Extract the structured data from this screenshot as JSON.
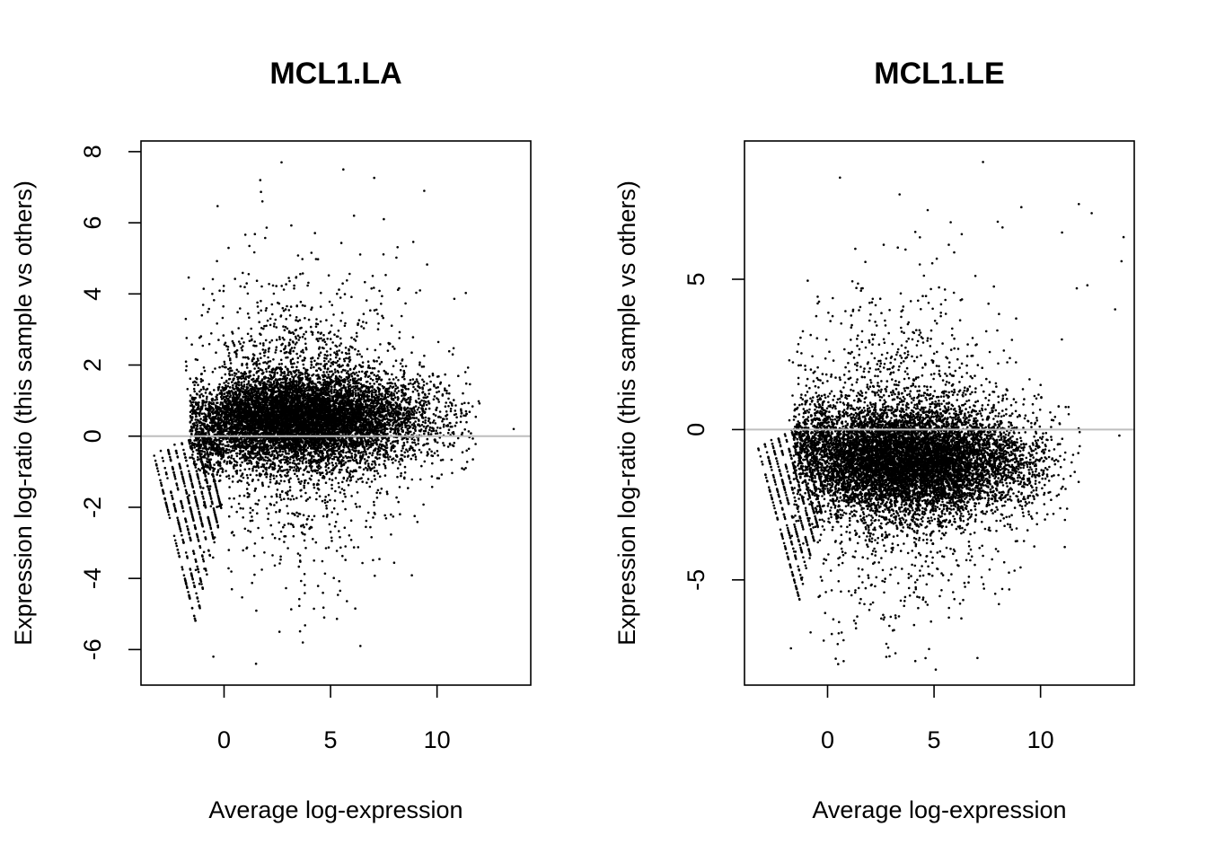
{
  "chart_data": [
    {
      "type": "scatter",
      "title": "MCL1.LA",
      "xlabel": "Average log-expression",
      "ylabel": "Expression log-ratio (this sample vs others)",
      "xlim": [
        -3.9,
        14.4
      ],
      "ylim": [
        -7.0,
        8.3
      ],
      "xticks": [
        0,
        5,
        10
      ],
      "yticks": [
        -6,
        -4,
        -2,
        0,
        2,
        4,
        6,
        8
      ],
      "reference_line": 0,
      "reference_line_color": "#bebebe",
      "point_color": "#000000",
      "cloud": {
        "center_x": 3.5,
        "center_y": 0.5,
        "spread_x": 3.0,
        "spread_y": 0.8,
        "count": 9000
      },
      "low_expression_stripes": {
        "x_start": -3.3,
        "x_end": -0.3,
        "slope": -2.4,
        "count": 8
      },
      "outliers": [
        {
          "x": 2.7,
          "y": 7.7
        },
        {
          "x": 5.6,
          "y": 7.5
        },
        {
          "x": 1.7,
          "y": 7.2
        },
        {
          "x": 9.4,
          "y": 6.9
        },
        {
          "x": 1.8,
          "y": 6.6
        },
        {
          "x": 7.5,
          "y": 6.1
        },
        {
          "x": 6.1,
          "y": 6.2
        },
        {
          "x": 9.2,
          "y": 4.1
        },
        {
          "x": 13.6,
          "y": 0.2
        },
        {
          "x": 1.5,
          "y": -6.4
        },
        {
          "x": 6.4,
          "y": -5.9
        },
        {
          "x": 3.7,
          "y": -5.8
        },
        {
          "x": 2.6,
          "y": -5.5
        },
        {
          "x": 4.7,
          "y": -5.1
        },
        {
          "x": -0.5,
          "y": -6.2
        }
      ]
    },
    {
      "type": "scatter",
      "title": "MCL1.LE",
      "xlabel": "Average log-expression",
      "ylabel": "Expression log-ratio (this sample vs others)",
      "xlim": [
        -3.9,
        14.4
      ],
      "ylim": [
        -8.5,
        9.6
      ],
      "xticks": [
        0,
        5,
        10
      ],
      "yticks": [
        -5,
        0,
        5
      ],
      "reference_line": 0,
      "reference_line_color": "#bebebe",
      "point_color": "#000000",
      "cloud": {
        "center_x": 3.5,
        "center_y": -1.0,
        "spread_x": 3.0,
        "spread_y": 1.1,
        "count": 9000
      },
      "low_expression_stripes": {
        "x_start": -3.3,
        "x_end": -0.3,
        "slope": -2.6,
        "count": 8
      },
      "outliers": [
        {
          "x": 7.3,
          "y": 8.9
        },
        {
          "x": 9.1,
          "y": 7.4
        },
        {
          "x": 11.8,
          "y": 7.5
        },
        {
          "x": 12.4,
          "y": 7.2
        },
        {
          "x": 13.9,
          "y": 6.4
        },
        {
          "x": 13.8,
          "y": 5.6
        },
        {
          "x": 4.7,
          "y": 7.3
        },
        {
          "x": 6.3,
          "y": 6.5
        },
        {
          "x": 11.7,
          "y": 4.7
        },
        {
          "x": 12.2,
          "y": 4.8
        },
        {
          "x": 13.5,
          "y": 4.0
        },
        {
          "x": 11.0,
          "y": 3.0
        },
        {
          "x": 13.7,
          "y": -0.2
        },
        {
          "x": 0.5,
          "y": -7.8
        },
        {
          "x": 4.6,
          "y": -7.6
        },
        {
          "x": 0.2,
          "y": -6.8
        },
        {
          "x": 7.3,
          "y": -4.2
        },
        {
          "x": 8.2,
          "y": -5.3
        }
      ]
    }
  ]
}
